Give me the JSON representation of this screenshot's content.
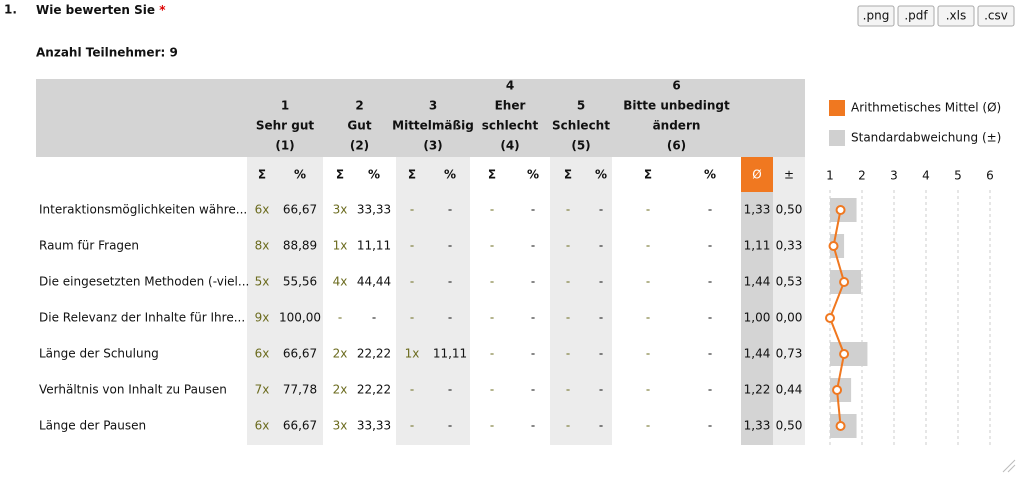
{
  "question": {
    "number": "1.",
    "text": "Wie bewerten Sie",
    "required": "*"
  },
  "export_buttons": [
    ".png",
    ".pdf",
    ".xls",
    ".csv"
  ],
  "participants": "Anzahl Teilnehmer: 9",
  "table": {
    "columns": [
      {
        "number": "1",
        "label": [
          "Sehr gut"
        ],
        "code": "(1)"
      },
      {
        "number": "2",
        "label": [
          "Gut"
        ],
        "code": "(2)"
      },
      {
        "number": "3",
        "label": [
          "Mittelmäßig"
        ],
        "code": "(3)"
      },
      {
        "number": "4",
        "label": [
          "Eher",
          "schlecht"
        ],
        "code": "(4)"
      },
      {
        "number": "5",
        "label": [
          "Schlecht"
        ],
        "code": "(5)"
      },
      {
        "number": "6",
        "label": [
          "Bitte unbedingt",
          "ändern"
        ],
        "code": "(6)"
      }
    ],
    "sum_header": "Σ",
    "pct_header": "%",
    "mean_header": "Ø",
    "sd_header": "±",
    "rows": [
      {
        "label": "Interaktionsmöglichkeiten währe...",
        "cells": [
          [
            "6x",
            "66,67"
          ],
          [
            "3x",
            "33,33"
          ],
          [
            "-",
            "-"
          ],
          [
            "-",
            "-"
          ],
          [
            "-",
            "-"
          ],
          [
            "-",
            "-"
          ]
        ]
      },
      {
        "label": "Raum für Fragen",
        "cells": [
          [
            "8x",
            "88,89"
          ],
          [
            "1x",
            "11,11"
          ],
          [
            "-",
            "-"
          ],
          [
            "-",
            "-"
          ],
          [
            "-",
            "-"
          ],
          [
            "-",
            "-"
          ]
        ]
      },
      {
        "label": "Die eingesetzten Methoden (-viel...",
        "cells": [
          [
            "5x",
            "55,56"
          ],
          [
            "4x",
            "44,44"
          ],
          [
            "-",
            "-"
          ],
          [
            "-",
            "-"
          ],
          [
            "-",
            "-"
          ],
          [
            "-",
            "-"
          ]
        ]
      },
      {
        "label": "Die Relevanz der Inhalte für Ihre...",
        "cells": [
          [
            "9x",
            "100,00"
          ],
          [
            "-",
            "-"
          ],
          [
            "-",
            "-"
          ],
          [
            "-",
            "-"
          ],
          [
            "-",
            "-"
          ],
          [
            "-",
            "-"
          ]
        ]
      },
      {
        "label": "Länge der Schulung",
        "cells": [
          [
            "6x",
            "66,67"
          ],
          [
            "2x",
            "22,22"
          ],
          [
            "1x",
            "11,11"
          ],
          [
            "-",
            "-"
          ],
          [
            "-",
            "-"
          ],
          [
            "-",
            "-"
          ]
        ]
      },
      {
        "label": "Verhältnis von Inhalt zu Pausen",
        "cells": [
          [
            "7x",
            "77,78"
          ],
          [
            "2x",
            "22,22"
          ],
          [
            "-",
            "-"
          ],
          [
            "-",
            "-"
          ],
          [
            "-",
            "-"
          ],
          [
            "-",
            "-"
          ]
        ]
      },
      {
        "label": "Länge der Pausen",
        "cells": [
          [
            "6x",
            "66,67"
          ],
          [
            "3x",
            "33,33"
          ],
          [
            "-",
            "-"
          ],
          [
            "-",
            "-"
          ],
          [
            "-",
            "-"
          ],
          [
            "-",
            "-"
          ]
        ]
      }
    ]
  },
  "chart_data": {
    "type": "line",
    "series": [
      {
        "name": "Arithmetisches Mittel (Ø)",
        "color": "#f07820",
        "values": [
          1.33,
          1.11,
          1.44,
          1.0,
          1.44,
          1.22,
          1.33
        ],
        "value_labels": [
          "1,33",
          "1,11",
          "1,44",
          "1,00",
          "1,44",
          "1,22",
          "1,33"
        ]
      },
      {
        "name": "Standardabweichung (±)",
        "color": "#d0d0d0",
        "values": [
          0.5,
          0.33,
          0.53,
          0.0,
          0.73,
          0.44,
          0.5
        ],
        "value_labels": [
          "0,50",
          "0,33",
          "0,53",
          "0,00",
          "0,73",
          "0,44",
          "0,50"
        ]
      }
    ],
    "xlim": [
      1,
      6
    ],
    "xticks": [
      1,
      2,
      3,
      4,
      5,
      6
    ]
  }
}
